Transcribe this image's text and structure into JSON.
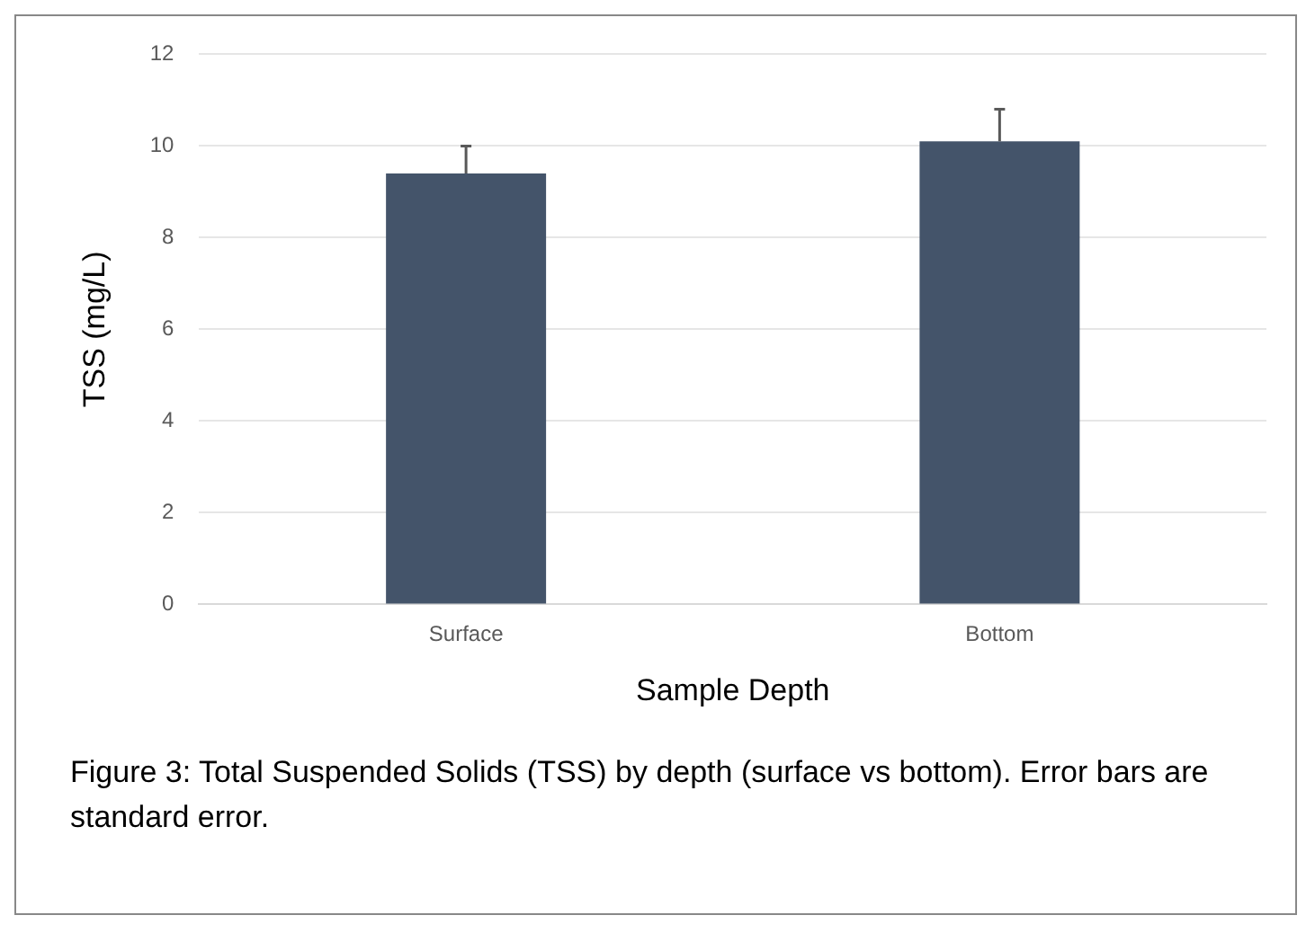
{
  "chart_data": {
    "type": "bar",
    "categories": [
      "Surface",
      "Bottom"
    ],
    "values": [
      9.4,
      10.1
    ],
    "errors": [
      [
        9.4,
        10.0
      ],
      [
        10.1,
        10.8
      ]
    ],
    "color": "#44546a",
    "xlabel": "Sample Depth",
    "ylabel": "TSS (mg/L)",
    "ylim": [
      0,
      12
    ],
    "yticks": [
      0,
      2,
      4,
      6,
      8,
      10,
      12
    ],
    "grid": "y",
    "legend": false,
    "annotations": [
      "Figure 3: Total Suspended Solids (TSS) by depth (surface vs bottom). Error bars are standard error."
    ]
  }
}
